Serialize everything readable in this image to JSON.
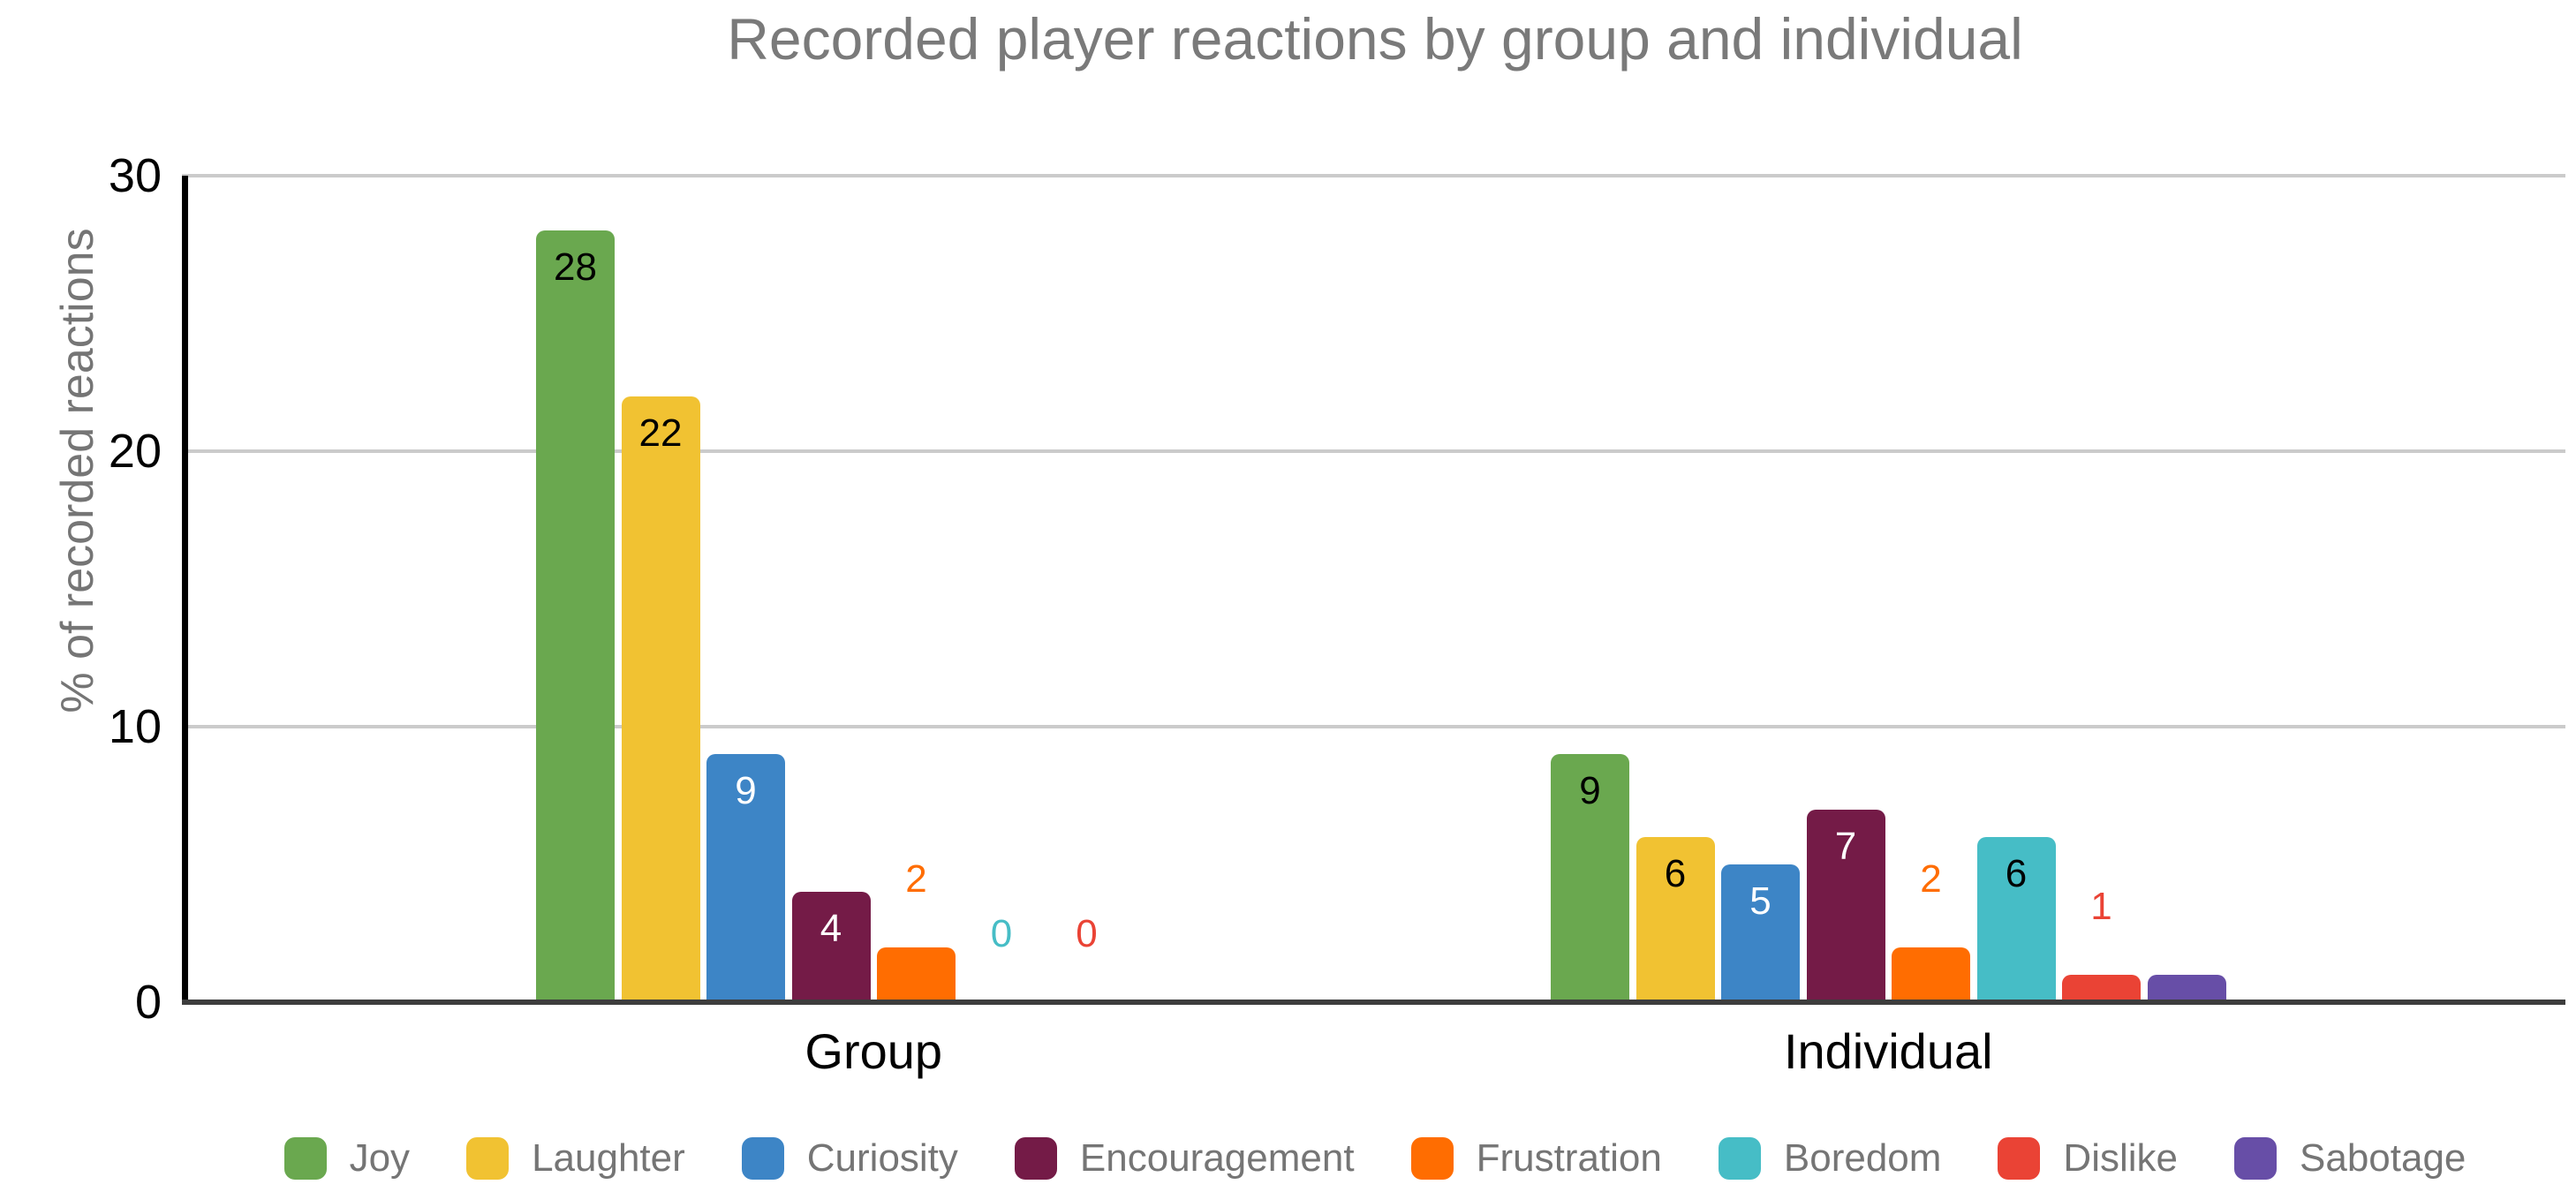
{
  "palette": {
    "background": "#ffffff",
    "title_text": "#7a7a7a",
    "axis_title_text": "#757575",
    "tick_text": "#000000",
    "category_text": "#000000",
    "legend_text": "#757575",
    "gridline": "#cbcbcb",
    "y_axis_line": "#000000",
    "x_baseline": "#3d3d3d"
  },
  "chart_data": {
    "type": "bar",
    "title": "Recorded player reactions by group and individual",
    "xlabel": "",
    "ylabel": "% of recorded reactions",
    "ylim": [
      0,
      30
    ],
    "yticks": [
      0,
      10,
      20,
      30
    ],
    "grid": true,
    "legend_position": "bottom",
    "categories": [
      "Group",
      "Individual"
    ],
    "series": [
      {
        "name": "Joy",
        "color": "#6aa84f",
        "values": [
          28,
          9
        ],
        "labels": [
          "28",
          "9"
        ],
        "placements": [
          "inside",
          "inside"
        ],
        "label_colors": [
          "#000000",
          "#000000"
        ]
      },
      {
        "name": "Laughter",
        "color": "#f1c232",
        "values": [
          22,
          6
        ],
        "labels": [
          "22",
          "6"
        ],
        "placements": [
          "inside",
          "inside"
        ],
        "label_colors": [
          "#000000",
          "#000000"
        ]
      },
      {
        "name": "Curiosity",
        "color": "#3d85c6",
        "values": [
          9,
          5
        ],
        "labels": [
          "9",
          "5"
        ],
        "placements": [
          "inside",
          "inside"
        ],
        "label_colors": [
          "#ffffff",
          "#ffffff"
        ]
      },
      {
        "name": "Encouragement",
        "color": "#741b47",
        "values": [
          4,
          7
        ],
        "labels": [
          "4",
          "7"
        ],
        "placements": [
          "inside",
          "inside"
        ],
        "label_colors": [
          "#ffffff",
          "#ffffff"
        ]
      },
      {
        "name": "Frustration",
        "color": "#ff6d01",
        "values": [
          2,
          2
        ],
        "labels": [
          "2",
          "2"
        ],
        "placements": [
          "outside",
          "outside"
        ],
        "label_colors": [
          "#ff6d01",
          "#ff6d01"
        ]
      },
      {
        "name": "Boredom",
        "color": "#46bdc6",
        "values": [
          0,
          6
        ],
        "labels": [
          "0",
          "6"
        ],
        "placements": [
          "outside",
          "inside"
        ],
        "label_colors": [
          "#46bdc6",
          "#000000"
        ]
      },
      {
        "name": "Dislike",
        "color": "#ea4335",
        "values": [
          0,
          1
        ],
        "labels": [
          "0",
          "1"
        ],
        "placements": [
          "outside",
          "outside"
        ],
        "label_colors": [
          "#ea4335",
          "#ea4335"
        ]
      },
      {
        "name": "Sabotage",
        "color": "#674ea7",
        "values": [
          null,
          1
        ],
        "labels": [
          null,
          null
        ],
        "placements": [
          null,
          null
        ],
        "label_colors": [
          null,
          null
        ]
      }
    ]
  }
}
